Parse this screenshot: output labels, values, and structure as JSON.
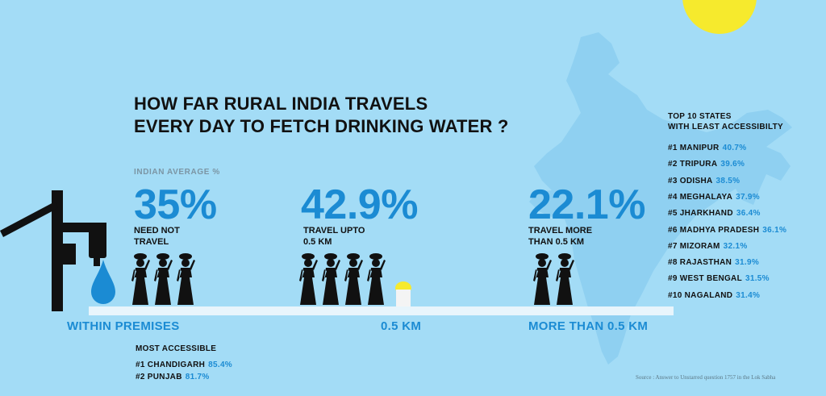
{
  "title": {
    "line1": "HOW FAR RURAL INDIA TRAVELS",
    "line2": "EVERY DAY TO FETCH DRINKING WATER ?"
  },
  "indian_average_label": "INDIAN AVERAGE %",
  "stats": [
    {
      "value": "35%",
      "caption1": "NEED NOT",
      "caption2": "TRAVEL",
      "section": "WITHIN PREMISES"
    },
    {
      "value": "42.9%",
      "caption1": "TRAVEL UPTO",
      "caption2": "0.5 KM",
      "section": "0.5 KM"
    },
    {
      "value": "22.1%",
      "caption1": "TRAVEL MORE",
      "caption2": "THAN 0.5 KM",
      "section": "MORE THAN 0.5 KM"
    }
  ],
  "most_accessible": {
    "heading": "MOST ACCESSIBLE",
    "items": [
      {
        "label": "#1  CHANDIGARH",
        "pct": "85.4%"
      },
      {
        "label": "#2  PUNJAB",
        "pct": "81.7%"
      }
    ]
  },
  "least_accessible": {
    "heading1": "TOP 10 STATES",
    "heading2": "WITH LEAST ACCESSIBILTY",
    "items": [
      {
        "label": "#1  MANIPUR",
        "pct": "40.7%"
      },
      {
        "label": "#2  TRIPURA",
        "pct": "39.6%"
      },
      {
        "label": "#3  ODISHA",
        "pct": "38.5%"
      },
      {
        "label": "#4  MEGHALAYA",
        "pct": "37.9%"
      },
      {
        "label": "#5  JHARKHAND",
        "pct": "36.4%"
      },
      {
        "label": "#6  MADHYA PRADESH",
        "pct": "36.1%"
      },
      {
        "label": "#7  MIZORAM",
        "pct": "32.1%"
      },
      {
        "label": "#8  RAJASTHAN",
        "pct": "31.9%"
      },
      {
        "label": "#9  WEST BENGAL",
        "pct": "31.5%"
      },
      {
        "label": "#10  NAGALAND",
        "pct": "31.4%"
      }
    ]
  },
  "source": "Source : Answer to Unstarred question 1757 in the Lok Sabha",
  "colors": {
    "background": "#a3dcf6",
    "accent": "#1b8bd3",
    "sun": "#f6ea2d",
    "map": "#8fd0f1"
  },
  "icons": [
    "sun-icon",
    "india-map",
    "hand-pump-icon",
    "water-drop-icon",
    "woman-figure-icon",
    "bucket-icon"
  ]
}
